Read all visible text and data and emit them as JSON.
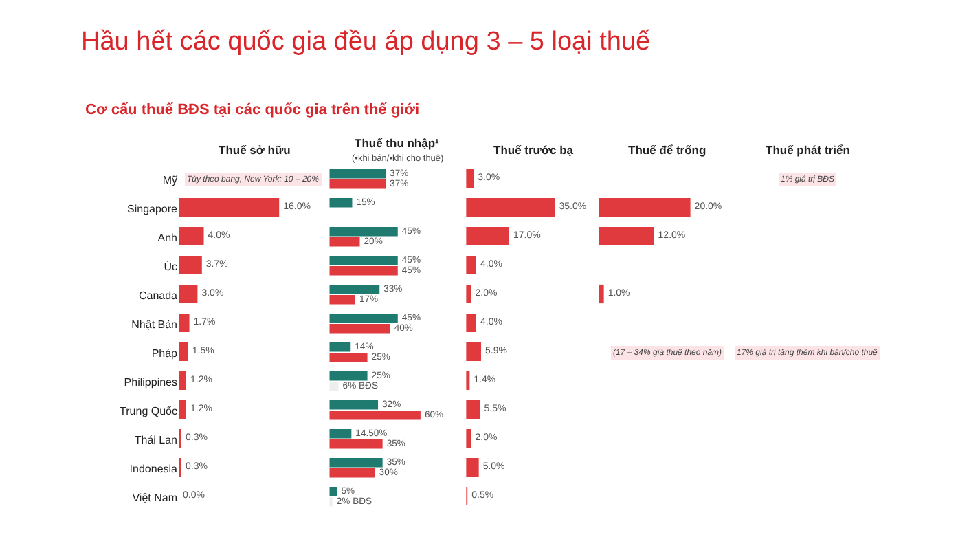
{
  "chart_data": [
    {
      "type": "bar",
      "orientation": "horizontal",
      "title": "Thuế sở hữu",
      "tick_labels": "y",
      "categories": [
        "Mỹ",
        "Singapore",
        "Anh",
        "Úc",
        "Canada",
        "Nhật Bản",
        "Pháp",
        "Philippines",
        "Trung Quốc",
        "Thái Lan",
        "Indonesia",
        "Việt Nam"
      ],
      "values": [
        null,
        16.0,
        4.0,
        3.7,
        3.0,
        1.7,
        1.5,
        1.2,
        1.2,
        0.3,
        0.3,
        0.0
      ],
      "color": "#e0393e",
      "value_labels": [
        null,
        "16.0%",
        "4.0%",
        "3.7%",
        "3.0%",
        "1.7%",
        "1.5%",
        "1.2%",
        "1.2%",
        "0.3%",
        "0.3%",
        "0.0%"
      ],
      "annotations": [
        "Hầu hết các quốc gia đều áp dụng 3 – 5 loại thuế",
        "Cơ cấu thuế BĐS tại các quốc gia trên thế giới",
        "Tùy theo bang, New York: 10 – 20%"
      ]
    },
    {
      "type": "bar",
      "orientation": "horizontal",
      "title": "Thuế thu nhập¹",
      "subtitle": "(•khi bán/•khi cho thuê)",
      "tick_labels": false,
      "categories": [
        "Mỹ",
        "Singapore",
        "Anh",
        "Úc",
        "Canada",
        "Nhật Bản",
        "Pháp",
        "Philippines",
        "Trung Quốc",
        "Thái Lan",
        "Indonesia",
        "Việt Nam"
      ],
      "series": [
        {
          "color": "#1f7a70",
          "values": [
            37,
            15,
            45,
            45,
            33,
            45,
            14,
            25,
            32,
            14.5,
            35,
            5
          ],
          "value_labels": [
            "37%",
            "15%",
            "45%",
            "45%",
            "33%",
            "45%",
            "14%",
            "25%",
            "32%",
            "14.50%",
            "35%",
            "5%"
          ]
        },
        {
          "colors": [
            "#e0393e",
            "#e0393e",
            "#e0393e",
            "#e0393e",
            "#e0393e",
            "#e0393e",
            "#e0393e",
            "#eeeeee",
            "#e0393e",
            "#e0393e",
            "#e0393e",
            "#eeeeee"
          ],
          "values": [
            37,
            null,
            20,
            45,
            17,
            40,
            25,
            6,
            60,
            35,
            30,
            2
          ],
          "value_labels": [
            "37%",
            null,
            "20%",
            "45%",
            "17%",
            "40%",
            "25%",
            "6% BĐS",
            "60%",
            "35%",
            "30%",
            "2% BĐS"
          ]
        }
      ]
    },
    {
      "type": "bar",
      "orientation": "horizontal",
      "title": "Thuế trước bạ",
      "tick_labels": false,
      "categories": [
        "Mỹ",
        "Singapore",
        "Anh",
        "Úc",
        "Canada",
        "Nhật Bản",
        "Pháp",
        "Philippines",
        "Trung Quốc",
        "Thái Lan",
        "Indonesia",
        "Việt Nam"
      ],
      "values": [
        3.0,
        35.0,
        17.0,
        4.0,
        2.0,
        4.0,
        5.9,
        1.4,
        5.5,
        2.0,
        5.0,
        0.5
      ],
      "color": "#e0393e",
      "value_labels": [
        "3.0%",
        "35.0%",
        "17.0%",
        "4.0%",
        "2.0%",
        "4.0%",
        "5.9%",
        "1.4%",
        "5.5%",
        "2.0%",
        "5.0%",
        "0.5%"
      ]
    },
    {
      "type": "bar",
      "orientation": "horizontal",
      "title": "Thuế để trống",
      "tick_labels": false,
      "categories": [
        "Mỹ",
        "Singapore",
        "Anh",
        "Úc",
        "Canada",
        "Nhật Bản",
        "Pháp",
        "Philippines",
        "Trung Quốc",
        "Thái Lan",
        "Indonesia",
        "Việt Nam"
      ],
      "values": [
        null,
        20.0,
        12.0,
        null,
        1.0,
        null,
        null,
        null,
        null,
        null,
        null,
        null
      ],
      "color": "#e0393e",
      "value_labels": [
        null,
        "20.0%",
        "12.0%",
        null,
        "1.0%",
        null,
        null,
        null,
        null,
        null,
        null,
        null
      ],
      "annotations": [
        "(17 – 34% giá thuê theo năm)"
      ]
    },
    {
      "type": "other",
      "title": "Thuế phát triển",
      "annotations": [
        "1% giá trị BĐS",
        "17% giá trị tăng thêm khi bán/cho thuê"
      ]
    }
  ]
}
